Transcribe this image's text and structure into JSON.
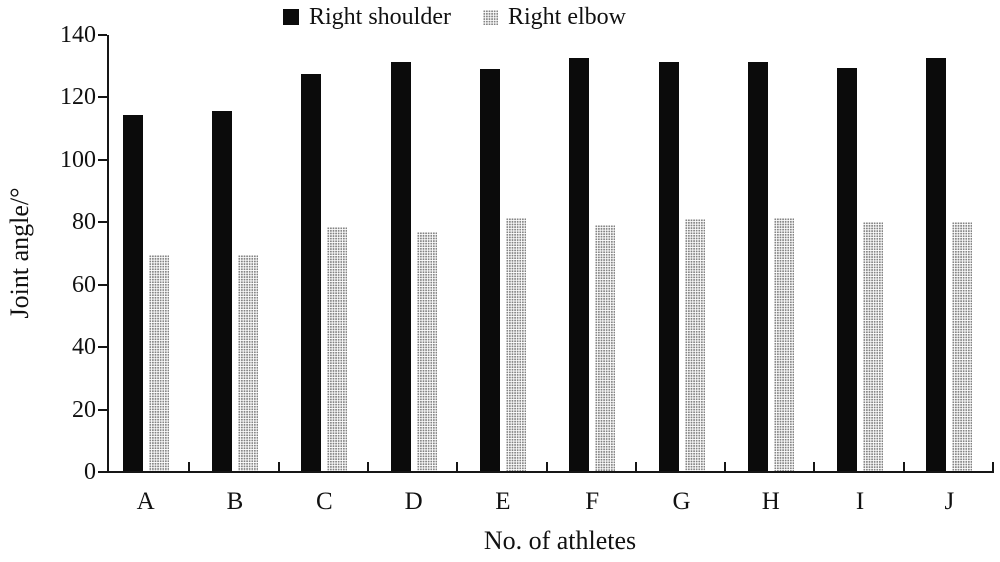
{
  "legend": {
    "items": [
      {
        "label": "Right shoulder",
        "swatch": "solid-black-square"
      },
      {
        "label": "Right elbow",
        "swatch": "dotted-gray-square"
      }
    ]
  },
  "chart_data": {
    "type": "bar",
    "categories": [
      "A",
      "B",
      "C",
      "D",
      "E",
      "F",
      "G",
      "H",
      "I",
      "J"
    ],
    "series": [
      {
        "name": "Right shoulder",
        "style": "solid-black",
        "color": "#0b0b0b",
        "values": [
          114.5,
          115.5,
          127.5,
          131.5,
          129,
          132.5,
          131.5,
          131.5,
          129.5,
          132.5
        ]
      },
      {
        "name": "Right elbow",
        "style": "dotted-gray",
        "color": "#d9d9d9",
        "values": [
          69.5,
          69.5,
          78.5,
          77,
          81.5,
          79,
          81,
          81.5,
          80,
          80
        ]
      }
    ],
    "xlabel": "No. of athletes",
    "ylabel": "Joint angle/°",
    "ylim": [
      0,
      140
    ],
    "yticks": [
      0,
      20,
      40,
      60,
      80,
      100,
      120,
      140
    ],
    "grid": false,
    "legend_position": "top-center",
    "axis_color": "#161616"
  }
}
